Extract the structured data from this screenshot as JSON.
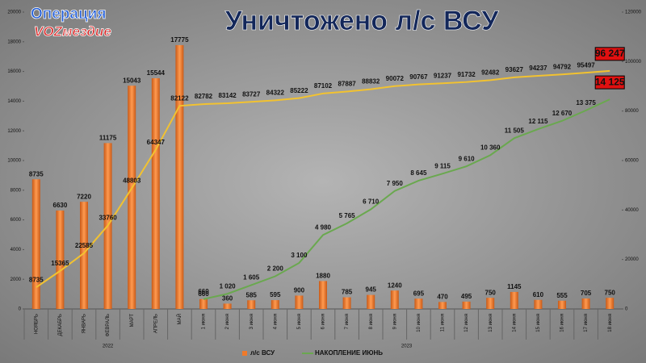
{
  "logo": {
    "line1": "Операция",
    "line2": "VOZмездие"
  },
  "chart_data": {
    "type": "bar",
    "title": "Уничтожено л/с ВСУ",
    "categories": [
      "НОЯБРЬ",
      "ДЕКАБРЬ",
      "ЯНВАРЬ",
      "ФЕВРАЛЬ",
      "МАРТ",
      "АПРЕЛЬ",
      "МАЙ",
      "1 июня",
      "2 июня",
      "3 июня",
      "4 июня",
      "5 июня",
      "6 июня",
      "7 июня",
      "8 июня",
      "9 июня",
      "10 июня",
      "11 июня",
      "12 июня",
      "13 июня",
      "14 июня",
      "15 июня",
      "16 июня",
      "17 июня",
      "18 июня"
    ],
    "years": [
      "2022",
      "2023"
    ],
    "series": [
      {
        "name": "л/с ВСУ",
        "type": "bar",
        "color": "#f07a2a",
        "values": [
          8735,
          6630,
          7220,
          11175,
          15043,
          15544,
          17775,
          660,
          360,
          585,
          595,
          900,
          1880,
          785,
          945,
          1240,
          695,
          470,
          495,
          750,
          1145,
          610,
          555,
          705,
          750
        ]
      },
      {
        "type": "line",
        "axis": "y2",
        "color": "#f2c230",
        "values": [
          8735,
          15365,
          22585,
          33760,
          48803,
          64347,
          82122,
          82782,
          83142,
          83727,
          84322,
          85222,
          87102,
          87887,
          88832,
          90072,
          90767,
          91237,
          91732,
          92482,
          93627,
          94237,
          94792,
          95497,
          96247
        ],
        "value_labels": [
          "8735",
          "15365",
          "22585",
          "33760",
          "48803",
          "64347",
          "82122",
          "82782",
          "83142",
          "83727",
          "84322",
          "85222",
          "87102",
          "87887",
          "88832",
          "90072",
          "90767",
          "91237",
          "91732",
          "92482",
          "93627",
          "94237",
          "94792",
          "95497",
          "96 247"
        ]
      },
      {
        "name": "НАКОПЛЕНИЕ ИЮНЬ",
        "type": "line",
        "color": "#6aa84f",
        "values": [
          null,
          null,
          null,
          null,
          null,
          null,
          null,
          660,
          1020,
          1605,
          2200,
          3100,
          4980,
          5765,
          6710,
          7950,
          8645,
          9115,
          9610,
          10360,
          11505,
          12115,
          12670,
          13375,
          14125
        ],
        "value_labels": [
          null,
          null,
          null,
          null,
          null,
          null,
          null,
          "660",
          "1 020",
          "1 605",
          "2 200",
          "3 100",
          "4 980",
          "5 765",
          "6 710",
          "7 950",
          "8 645",
          "9 115",
          "9 610",
          "10 360",
          "11 505",
          "12 115",
          "12 670",
          "13 375",
          "14 125"
        ]
      }
    ],
    "ylim": [
      0,
      20000
    ],
    "yticks": [
      0,
      2000,
      4000,
      6000,
      8000,
      10000,
      12000,
      14000,
      16000,
      18000,
      20000
    ],
    "y2lim": [
      0,
      120000
    ],
    "y2ticks": [
      0,
      20000,
      40000,
      60000,
      80000,
      100000,
      120000
    ],
    "grid": false,
    "legend": "bottom"
  }
}
